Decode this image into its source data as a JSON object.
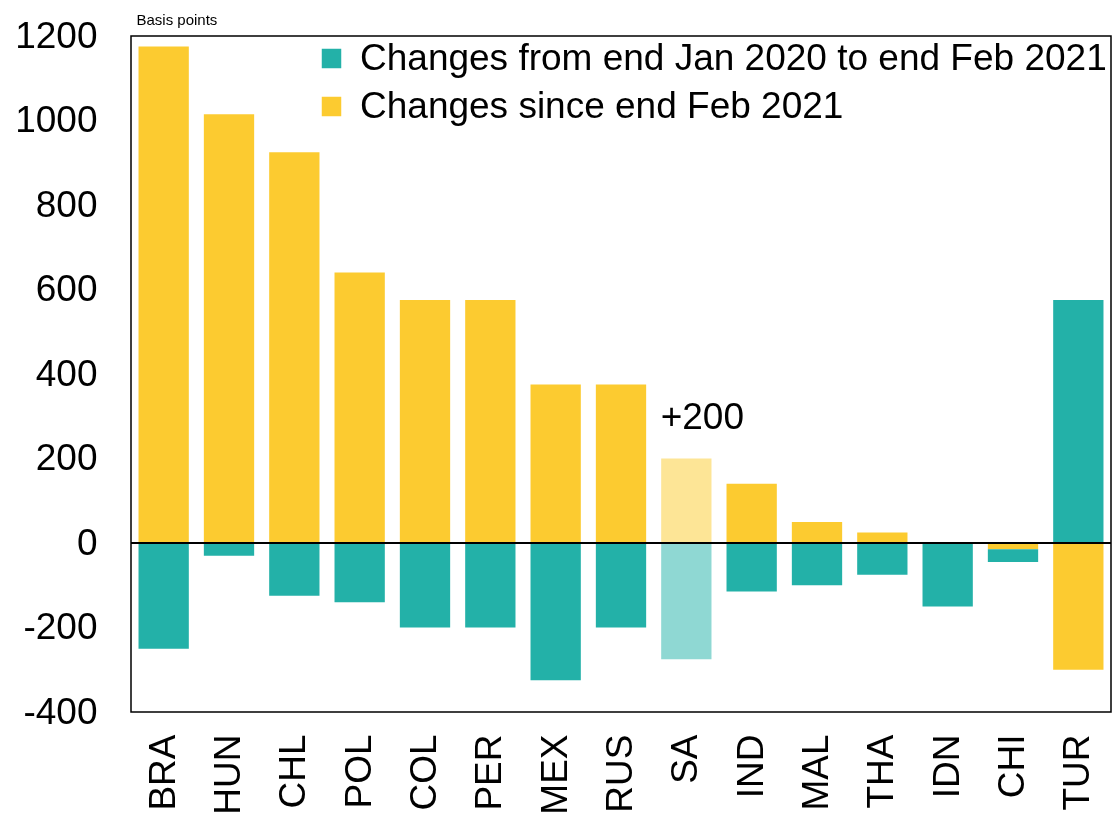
{
  "chart_data": {
    "type": "bar",
    "ylabel": "Basis points",
    "stacked": true,
    "categories": [
      "BRA",
      "HUN",
      "CHL",
      "POL",
      "COL",
      "PER",
      "MEX",
      "RUS",
      "SA",
      "IND",
      "MAL",
      "THA",
      "IDN",
      "CHI",
      "TUR"
    ],
    "series": [
      {
        "name": "Changes since end Feb 2021",
        "color": "#fccb30",
        "colors": [
          "#fccb30",
          "#fccb30",
          "#fccb30",
          "#fccb30",
          "#fccb30",
          "#fccb30",
          "#fccb30",
          "#fccb30",
          "#fde596",
          "#fccb30",
          "#fccb30",
          "#fccb30",
          "#fccb30",
          "#fccb30",
          "#fccb30"
        ],
        "values": [
          1175,
          1015,
          925,
          640,
          575,
          575,
          375,
          375,
          200,
          140,
          50,
          25,
          null,
          -15,
          -300
        ]
      },
      {
        "name": "Changes from end Jan 2020 to end Feb 2021",
        "color": "#23b1a8",
        "colors": [
          "#23b1a8",
          "#23b1a8",
          "#23b1a8",
          "#23b1a8",
          "#23b1a8",
          "#23b1a8",
          "#23b1a8",
          "#23b1a8",
          "#8fd8d3",
          "#23b1a8",
          "#23b1a8",
          "#23b1a8",
          "#23b1a8",
          "#23b1a8",
          "#23b1a8"
        ],
        "values": [
          -250,
          -30,
          -125,
          -140,
          -200,
          -200,
          -325,
          -200,
          -275,
          -115,
          -100,
          -75,
          -150,
          -30,
          575
        ]
      }
    ],
    "ylim": [
      -400,
      1200
    ],
    "yticks": [
      -400,
      -200,
      0,
      200,
      400,
      600,
      800,
      1000,
      1200
    ],
    "legend": "top right",
    "ref_lines": [
      {
        "axis": "y",
        "value": 0,
        "color": "#000000"
      }
    ],
    "annotations": [
      {
        "text": "+200",
        "x": "SA",
        "y": 200
      }
    ]
  }
}
